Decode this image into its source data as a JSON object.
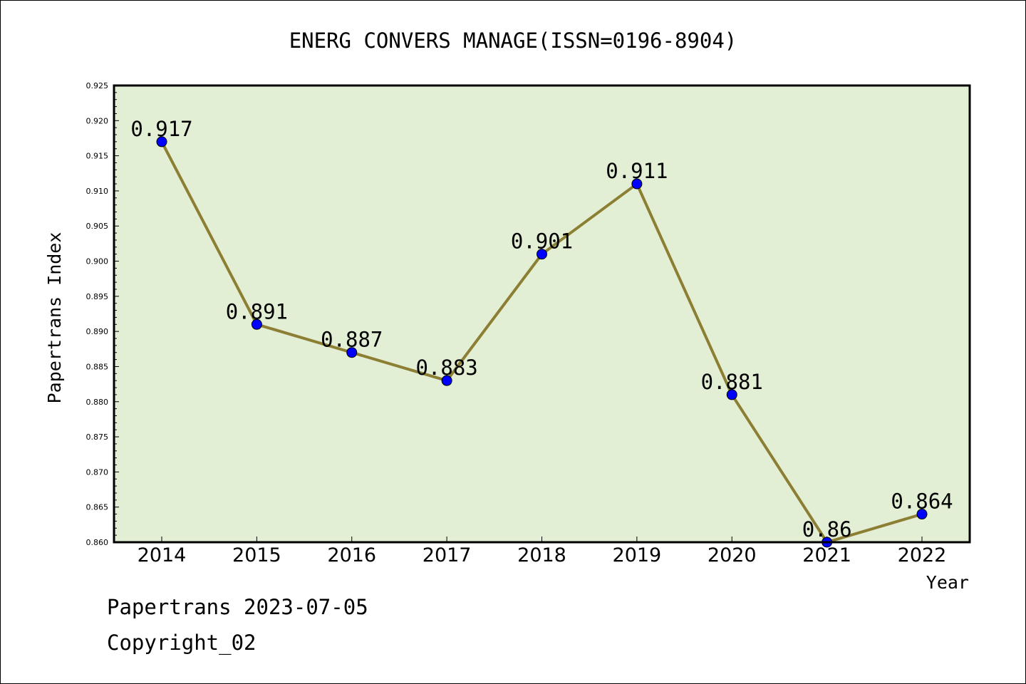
{
  "chart_data": {
    "type": "line",
    "title": "ENERG CONVERS MANAGE(ISSN=0196-8904)",
    "xlabel": "Year",
    "ylabel": "Papertrans Index",
    "categories": [
      "2014",
      "2015",
      "2016",
      "2017",
      "2018",
      "2019",
      "2020",
      "2021",
      "2022"
    ],
    "series": [
      {
        "values": [
          0.917,
          0.891,
          0.887,
          0.883,
          0.901,
          0.911,
          0.881,
          0.86,
          0.864
        ],
        "data_labels": [
          "0.917",
          "0.891",
          "0.887",
          "0.883",
          "0.901",
          "0.911",
          "0.881",
          "0.86",
          "0.864"
        ]
      }
    ],
    "ylim": [
      0.86,
      0.925
    ],
    "yticks": [
      "0.860",
      "0.865",
      "0.870",
      "0.875",
      "0.880",
      "0.885",
      "0.890",
      "0.895",
      "0.900",
      "0.905",
      "0.910",
      "0.915",
      "0.920",
      "0.925"
    ],
    "grid": false,
    "legend": "none",
    "colors": {
      "plot_background": "#e2efd4",
      "line": "#8c7f34",
      "marker": "#0000ff"
    }
  },
  "footer": {
    "line1": "Papertrans 2023-07-05",
    "line2": "Copyright_02"
  }
}
